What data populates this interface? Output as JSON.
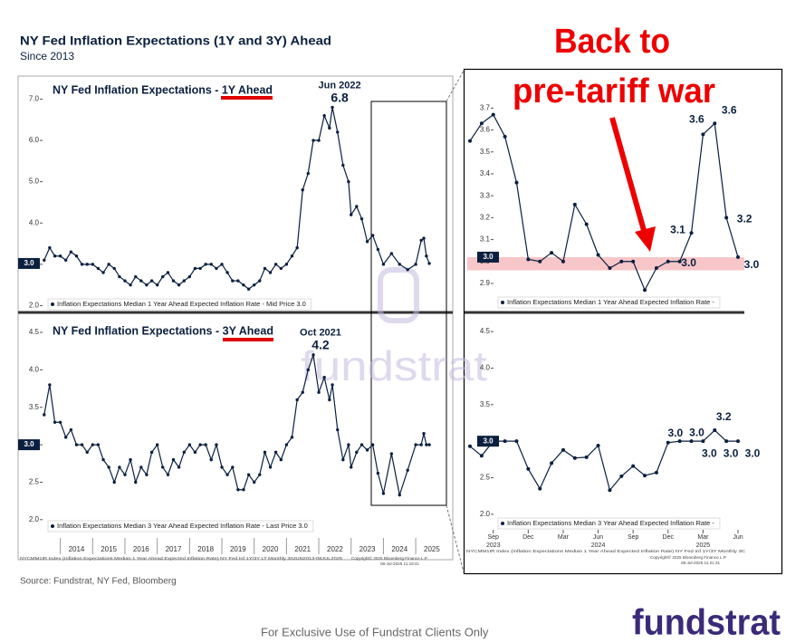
{
  "title": "NY Fed Inflation Expectations (1Y and 3Y) Ahead",
  "subtitle": "Since 2013",
  "annotation": [
    "Back to",
    "pre-tariff war"
  ],
  "source": "Source: Fundstrat, NY Fed, Bloomberg",
  "footer": "For Exclusive Use of Fundstrat Clients Only",
  "logo": "fundstrat",
  "watermark": "fundstrat",
  "footnotes_left": [
    "NYCMM1IR Index (Inflation Expectations Median 1 Year Ahead Expected Inflation Rate) NY Fed Inf 1Y/3Y LT  Monthly 30JUN2013-08JUL2025",
    "Copyright© 2025 Bloomberg Finance L.P.",
    "08-Jul-2025 11:19:41"
  ],
  "footnotes_right": [
    "NYCMM1IR Index (Inflation Expectations Median 1 Year Ahead Expected Inflation Rate) NY Fed Inf 1Y/3Y  Monthly 3C",
    "Copyright© 2025 Bloomberg Finance L.P.",
    "08-Jul-2025 11:21:31"
  ],
  "chart_data": [
    {
      "type": "line",
      "title": "NY Fed Inflation Expectations - 1Y Ahead",
      "x": [
        2013.5,
        2013.67,
        2013.83,
        2014,
        2014.17,
        2014.33,
        2014.5,
        2014.67,
        2014.83,
        2015,
        2015.17,
        2015.33,
        2015.5,
        2015.67,
        2015.83,
        2016,
        2016.17,
        2016.33,
        2016.5,
        2016.67,
        2016.83,
        2017,
        2017.17,
        2017.33,
        2017.5,
        2017.67,
        2017.83,
        2018,
        2018.17,
        2018.33,
        2018.5,
        2018.67,
        2018.83,
        2019,
        2019.17,
        2019.33,
        2019.5,
        2019.67,
        2019.83,
        2020,
        2020.17,
        2020.33,
        2020.5,
        2020.67,
        2020.83,
        2021,
        2021.17,
        2021.33,
        2021.5,
        2021.67,
        2021.83,
        2022,
        2022.17,
        2022.33,
        2022.42,
        2022.58,
        2022.75,
        2022.92,
        2023,
        2023.17,
        2023.33,
        2023.5,
        2023.67,
        2023.83,
        2024,
        2024.25,
        2024.5,
        2024.75,
        2025,
        2025.17,
        2025.25,
        2025.33,
        2025.42
      ],
      "series": [
        {
          "name": "Inflation Expectations Median 1 Year Ahead Expected Inflation Rate - Mid Price 3.0",
          "color": "#0b1f3f",
          "values": [
            3.1,
            3.4,
            3.2,
            3.2,
            3.1,
            3.3,
            3.2,
            3.0,
            3.0,
            3.0,
            2.9,
            2.8,
            3.0,
            2.9,
            2.7,
            2.6,
            2.5,
            2.7,
            2.6,
            2.5,
            2.6,
            2.5,
            2.7,
            2.8,
            2.6,
            2.5,
            2.6,
            2.7,
            2.9,
            2.9,
            3.0,
            3.0,
            2.9,
            3.0,
            2.8,
            2.6,
            2.6,
            2.5,
            2.4,
            2.5,
            2.6,
            2.9,
            2.8,
            3.0,
            2.9,
            3.0,
            3.2,
            3.4,
            4.8,
            5.2,
            6.0,
            6.0,
            6.6,
            6.3,
            6.8,
            6.2,
            5.4,
            5.0,
            4.2,
            4.4,
            4.1,
            3.55,
            3.7,
            3.36,
            3.0,
            3.26,
            3.0,
            2.87,
            3.0,
            3.58,
            3.63,
            3.2,
            3.02
          ]
        }
      ],
      "xlim": [
        2013.45,
        2025.95
      ],
      "ylim": [
        1.9,
        7.47
      ],
      "yticks": [
        {
          "value": 2,
          "label": "2.0"
        },
        {
          "value": 3,
          "label": "3.0"
        },
        {
          "value": 4,
          "label": "4.0"
        },
        {
          "value": 5,
          "label": "5.0"
        },
        {
          "value": 6,
          "label": "6.0"
        },
        {
          "value": 7,
          "label": "7.0"
        }
      ],
      "current_label": "3.0",
      "peak": {
        "x": 2022.42,
        "label": "Jun 2022",
        "value": 6.8
      }
    },
    {
      "type": "line",
      "title": "NY Fed Inflation Expectations - 3Y Ahead",
      "x": [
        2013.5,
        2013.67,
        2013.83,
        2014,
        2014.17,
        2014.33,
        2014.5,
        2014.67,
        2014.83,
        2015,
        2015.17,
        2015.33,
        2015.5,
        2015.67,
        2015.83,
        2016,
        2016.17,
        2016.33,
        2016.5,
        2016.67,
        2016.83,
        2017,
        2017.17,
        2017.33,
        2017.5,
        2017.67,
        2017.83,
        2018,
        2018.17,
        2018.33,
        2018.5,
        2018.67,
        2018.83,
        2019,
        2019.17,
        2019.33,
        2019.5,
        2019.67,
        2019.83,
        2020,
        2020.17,
        2020.33,
        2020.5,
        2020.67,
        2020.83,
        2021,
        2021.17,
        2021.33,
        2021.5,
        2021.67,
        2021.83,
        2022,
        2022.17,
        2022.33,
        2022.42,
        2022.58,
        2022.75,
        2022.92,
        2023,
        2023.17,
        2023.33,
        2023.5,
        2023.67,
        2023.83,
        2024,
        2024.25,
        2024.5,
        2024.75,
        2025,
        2025.17,
        2025.25,
        2025.33,
        2025.42
      ],
      "series": [
        {
          "name": "Inflation Expectations Median 3 Year Ahead Expected Inflation Rate - Last Price 3.0",
          "color": "#0b1f3f",
          "values": [
            3.4,
            3.8,
            3.3,
            3.3,
            3.1,
            3.2,
            3.0,
            3.0,
            2.9,
            3.0,
            3.0,
            2.8,
            2.7,
            2.5,
            2.7,
            2.6,
            2.8,
            2.5,
            2.7,
            2.6,
            2.9,
            3.0,
            2.7,
            2.6,
            2.8,
            2.7,
            2.9,
            3.0,
            2.9,
            3.0,
            3.0,
            2.8,
            3.0,
            2.7,
            2.6,
            2.7,
            2.4,
            2.4,
            2.6,
            2.5,
            2.6,
            2.9,
            2.7,
            2.9,
            2.8,
            3.0,
            3.1,
            3.6,
            3.7,
            4.0,
            4.2,
            3.7,
            3.9,
            3.6,
            3.8,
            3.2,
            2.8,
            3.0,
            2.7,
            2.9,
            3.0,
            2.93,
            3.0,
            2.62,
            2.35,
            2.88,
            2.33,
            2.66,
            3.0,
            3.0,
            3.15,
            3.0,
            3.0
          ]
        }
      ],
      "xlim": [
        2013.45,
        2025.95
      ],
      "ylim": [
        1.78,
        4.73
      ],
      "xticks": [
        2014,
        2015,
        2016,
        2017,
        2018,
        2019,
        2020,
        2021,
        2022,
        2023,
        2024,
        2025
      ],
      "yticks": [
        {
          "value": 2,
          "label": "2.0"
        },
        {
          "value": 2.5,
          "label": "2.5"
        },
        {
          "value": 3,
          "label": "3.0"
        },
        {
          "value": 3.5,
          "label": "3.5"
        },
        {
          "value": 4,
          "label": "4.0"
        },
        {
          "value": 4.5,
          "label": "4.5"
        }
      ],
      "current_label": "3.0",
      "peak": {
        "x": 2021.83,
        "label": "Oct 2021",
        "value": 4.2
      }
    },
    {
      "type": "line",
      "series": [
        {
          "name": "Inflation Expectations Median 1 Year Ahead Expected Inflation Rate -",
          "color": "#0b1f3f",
          "values": [
            3.55,
            3.63,
            3.67,
            3.57,
            3.36,
            3.01,
            3.0,
            3.04,
            3.0,
            3.26,
            3.17,
            3.03,
            2.97,
            3.0,
            3.0,
            2.87,
            2.97,
            3.0,
            3.0,
            3.13,
            3.58,
            3.63,
            3.2,
            3.02
          ],
          "value_labels": [
            null,
            null,
            null,
            null,
            null,
            null,
            null,
            null,
            null,
            null,
            null,
            null,
            null,
            null,
            null,
            null,
            null,
            null,
            "3.0",
            "3.1",
            "3.6",
            "3.6",
            "3.2",
            "3.0"
          ]
        }
      ],
      "ylim": [
        2.78,
        3.78
      ],
      "yticks": [
        {
          "value": 2.9,
          "label": "2.9"
        },
        {
          "value": 3,
          "label": "3.0"
        },
        {
          "value": 3.1,
          "label": "3.1"
        },
        {
          "value": 3.2,
          "label": "3.2"
        },
        {
          "value": 3.3,
          "label": "3.3"
        },
        {
          "value": 3.4,
          "label": "3.4"
        },
        {
          "value": 3.5,
          "label": "3.5"
        },
        {
          "value": 3.6,
          "label": "3.6"
        },
        {
          "value": 3.7,
          "label": "3.7"
        }
      ],
      "highlight_band": [
        2.96,
        3.02
      ],
      "current_label": "3.0"
    },
    {
      "type": "line",
      "categories": [
        null,
        null,
        "Sep 2023",
        null,
        null,
        "Dec",
        null,
        null,
        "Mar",
        null,
        null,
        "Jun 2024",
        null,
        null,
        "Sep",
        null,
        null,
        "Dec",
        null,
        null,
        "Mar 2025",
        null,
        null,
        "Jun"
      ],
      "series": [
        {
          "name": "Inflation Expectations Median 3 Year Ahead Expected Inflation Rate -",
          "color": "#0b1f3f",
          "values": [
            2.93,
            2.8,
            3.0,
            3.0,
            3.0,
            2.62,
            2.35,
            2.7,
            2.88,
            2.77,
            2.78,
            2.94,
            2.33,
            2.52,
            2.66,
            2.53,
            2.57,
            2.98,
            3.0,
            3.0,
            3.0,
            3.15,
            3.0,
            3.0
          ],
          "value_labels": [
            null,
            null,
            null,
            null,
            null,
            null,
            null,
            null,
            null,
            null,
            null,
            null,
            null,
            null,
            null,
            null,
            null,
            "3.0",
            null,
            "3.0",
            "3.0",
            "3.2",
            "3.0",
            "3.0"
          ]
        }
      ],
      "ylim": [
        1.75,
        4.7
      ],
      "yticks": [
        {
          "value": 2,
          "label": "2.0"
        },
        {
          "value": 2.5,
          "label": "2.5"
        },
        {
          "value": 3,
          "label": "3.0"
        },
        {
          "value": 3.5,
          "label": "3.5"
        },
        {
          "value": 4,
          "label": "4.0"
        },
        {
          "value": 4.5,
          "label": "4.5"
        }
      ],
      "current_label": "3.0"
    }
  ]
}
